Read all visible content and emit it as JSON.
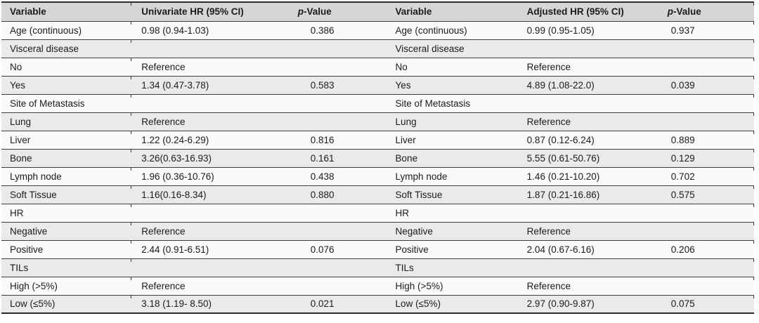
{
  "table": {
    "style": {
      "header_bg": "#d6d6d6",
      "row_alt_bg": "#eaeaea",
      "row_bg": "#fafafa",
      "rule_color": "#3c3c3c",
      "heavy_rule_color": "#2b2b2b",
      "text_color": "#1b1b1b",
      "page_bg": "#ffffff"
    },
    "headers": {
      "variable_left": "Variable",
      "univariate_hr": "Univariate HR (95% CI)",
      "p_left_italic": "p",
      "p_left_rest": "-Value",
      "variable_right": "Variable",
      "adjusted_hr": "Adjusted HR (95% CI)",
      "p_right_italic": "p",
      "p_right_rest": "-Value"
    },
    "rows": [
      {
        "cells": [
          "Age (continuous)",
          "0.98 (0.94-1.03)",
          "0.386",
          "Age (continuous)",
          "0.99 (0.95-1.05)",
          "0.937"
        ]
      },
      {
        "cells": [
          "Visceral disease",
          "",
          "",
          "Visceral disease",
          "",
          ""
        ]
      },
      {
        "cells": [
          "No",
          "Reference",
          "",
          "No",
          "Reference",
          ""
        ]
      },
      {
        "cells": [
          "Yes",
          "1.34 (0.47-3.78)",
          "0.583",
          "Yes",
          "4.89 (1.08-22.0)",
          "0.039"
        ]
      },
      {
        "cells": [
          "Site of Metastasis",
          "",
          "",
          "Site of Metastasis",
          "",
          ""
        ]
      },
      {
        "cells": [
          "Lung",
          "Reference",
          "",
          "Lung",
          "Reference",
          ""
        ]
      },
      {
        "cells": [
          "Liver",
          "1.22 (0.24-6.29)",
          "0.816",
          "Liver",
          "0.87 (0.12-6.24)",
          "0.889"
        ]
      },
      {
        "cells": [
          "Bone",
          "3.26(0.63-16.93)",
          "0.161",
          "Bone",
          "5.55 (0.61-50.76)",
          "0.129"
        ]
      },
      {
        "cells": [
          "Lymph node",
          "1.96 (0.36-10.76)",
          "0.438",
          "Lymph node",
          "1.46 (0.21-10.20)",
          "0.702"
        ]
      },
      {
        "cells": [
          "Soft Tissue",
          "1.16(0.16-8.34)",
          "0.880",
          "Soft Tissue",
          "1.87 (0.21-16.86)",
          "0.575"
        ]
      },
      {
        "cells": [
          "HR",
          "",
          "",
          "HR",
          "",
          ""
        ]
      },
      {
        "cells": [
          "Negative",
          "Reference",
          "",
          "Negative",
          "Reference",
          ""
        ]
      },
      {
        "cells": [
          "Positive",
          "2.44 (0.91-6.51)",
          "0.076",
          "Positive",
          "2.04 (0.67-6.16)",
          "0.206"
        ]
      },
      {
        "cells": [
          "TILs",
          "",
          "",
          "TILs",
          "",
          ""
        ]
      },
      {
        "cells": [
          "High (>5%)",
          "Reference",
          "",
          "High (>5%)",
          "Reference",
          ""
        ]
      },
      {
        "cells": [
          "Low (≤5%)",
          "3.18 (1.19- 8.50)",
          "0.021",
          "Low (≤5%)",
          "2.97 (0.90-9.87)",
          "0.075"
        ]
      }
    ]
  }
}
